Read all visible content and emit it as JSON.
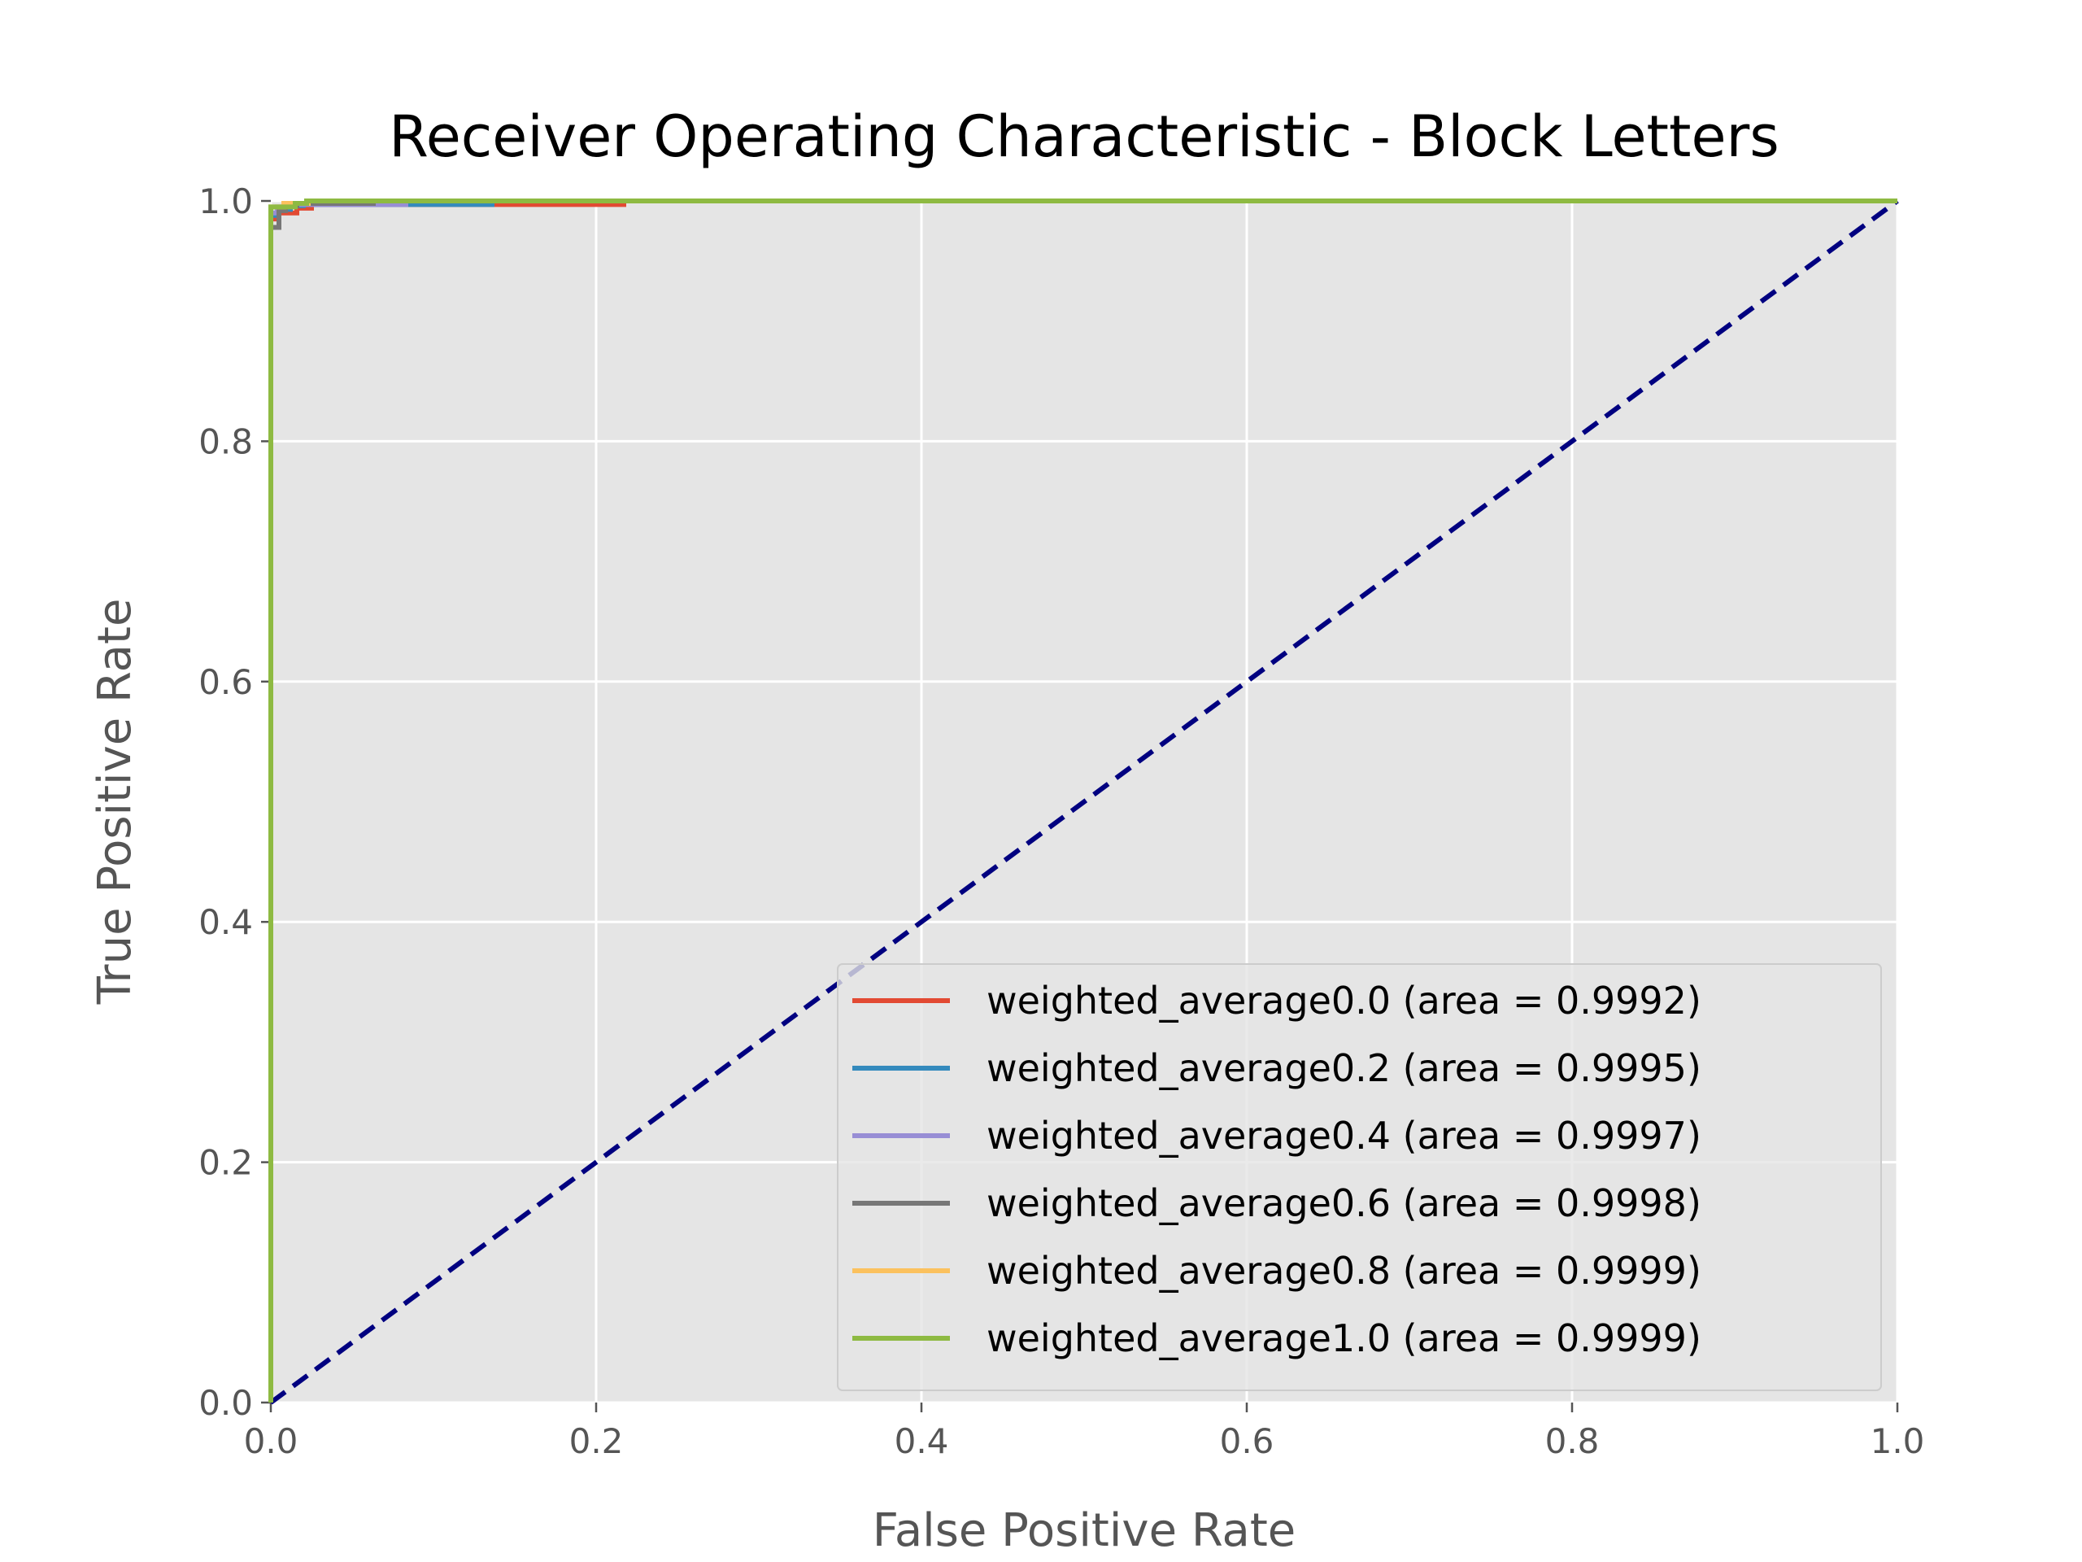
{
  "chart_data": {
    "type": "line",
    "title": "Receiver Operating Characteristic - Block Letters",
    "xlabel": "False Positive Rate",
    "ylabel": "True Positive Rate",
    "xlim": [
      0.0,
      1.0
    ],
    "ylim": [
      0.0,
      1.0
    ],
    "xticks": [
      "0.0",
      "0.2",
      "0.4",
      "0.6",
      "0.8",
      "1.0"
    ],
    "yticks": [
      "0.0",
      "0.2",
      "0.4",
      "0.6",
      "0.8",
      "1.0"
    ],
    "grid": true,
    "legend_position": "lower-right",
    "colors": {
      "plot_background": "#e5e5e5",
      "grid": "#ffffff",
      "diagonal": "#000080"
    },
    "diagonal": {
      "x": [
        0.0,
        1.0
      ],
      "y": [
        0.0,
        1.0
      ],
      "style": "dashed",
      "color": "#000080"
    },
    "series": [
      {
        "name": "weighted_average0.0 (area = 0.9992)",
        "color": "#e24a33",
        "points": [
          [
            0.0,
            0.0
          ],
          [
            0.0,
            0.985
          ],
          [
            0.004,
            0.985
          ],
          [
            0.004,
            0.99
          ],
          [
            0.016,
            0.99
          ],
          [
            0.016,
            0.994
          ],
          [
            0.025,
            0.994
          ],
          [
            0.025,
            0.997
          ],
          [
            0.217,
            0.997
          ],
          [
            0.217,
            1.0
          ],
          [
            1.0,
            1.0
          ]
        ]
      },
      {
        "name": "weighted_average0.2 (area = 0.9995)",
        "color": "#348abd",
        "points": [
          [
            0.0,
            0.0
          ],
          [
            0.0,
            0.988
          ],
          [
            0.004,
            0.988
          ],
          [
            0.004,
            0.993
          ],
          [
            0.012,
            0.993
          ],
          [
            0.012,
            0.996
          ],
          [
            0.02,
            0.996
          ],
          [
            0.02,
            0.997
          ],
          [
            0.136,
            0.997
          ],
          [
            0.136,
            1.0
          ],
          [
            1.0,
            1.0
          ]
        ]
      },
      {
        "name": "weighted_average0.4 (area = 0.9997)",
        "color": "#988ed5",
        "points": [
          [
            0.0,
            0.0
          ],
          [
            0.0,
            0.99
          ],
          [
            0.004,
            0.99
          ],
          [
            0.004,
            0.995
          ],
          [
            0.012,
            0.995
          ],
          [
            0.012,
            0.997
          ],
          [
            0.083,
            0.997
          ],
          [
            0.083,
            1.0
          ],
          [
            1.0,
            1.0
          ]
        ]
      },
      {
        "name": "weighted_average0.6 (area = 0.9998)",
        "color": "#777777",
        "points": [
          [
            0.0,
            0.0
          ],
          [
            0.0,
            0.978
          ],
          [
            0.005,
            0.978
          ],
          [
            0.005,
            0.992
          ],
          [
            0.009,
            0.992
          ],
          [
            0.009,
            0.996
          ],
          [
            0.016,
            0.996
          ],
          [
            0.016,
            0.998
          ],
          [
            0.063,
            0.998
          ],
          [
            0.063,
            1.0
          ],
          [
            1.0,
            1.0
          ]
        ]
      },
      {
        "name": "weighted_average0.8 (area = 0.9999)",
        "color": "#fbc15e",
        "points": [
          [
            0.0,
            0.0
          ],
          [
            0.0,
            0.995
          ],
          [
            0.008,
            0.995
          ],
          [
            0.008,
            0.998
          ],
          [
            0.023,
            0.998
          ],
          [
            0.023,
            1.0
          ],
          [
            1.0,
            1.0
          ]
        ]
      },
      {
        "name": "weighted_average1.0 (area = 0.9999)",
        "color": "#8eba42",
        "points": [
          [
            0.0,
            0.0
          ],
          [
            0.0,
            0.995
          ],
          [
            0.015,
            0.995
          ],
          [
            0.015,
            0.998
          ],
          [
            0.022,
            0.998
          ],
          [
            0.022,
            1.0
          ],
          [
            1.0,
            1.0
          ]
        ]
      }
    ]
  }
}
